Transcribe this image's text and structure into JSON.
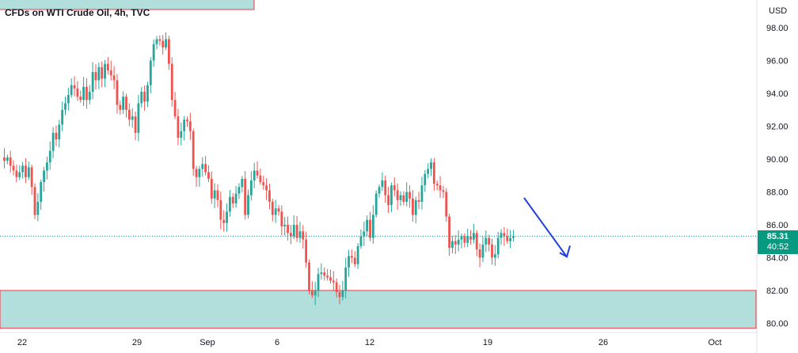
{
  "header": {
    "title": "CFDs on WTI Crude Oil, 4h, TVC"
  },
  "price_badge": {
    "price": "85.31",
    "countdown": "40:52"
  },
  "colors": {
    "up": "#26a69a",
    "down": "#ef5350",
    "zone_fill": "#b2dfdb",
    "zone_border": "#f23645",
    "arrow": "#1e40d8",
    "last_price_line": "#089981",
    "axis_text": "#131722"
  },
  "chart_data": {
    "type": "candlestick",
    "title": "CFDs on WTI Crude Oil, 4h, TVC",
    "currency_label": "USD",
    "ylim": [
      79.3,
      99.5
    ],
    "y_ticks": [
      80.0,
      82.0,
      84.0,
      86.0,
      88.0,
      90.0,
      92.0,
      94.0,
      96.0,
      98.0
    ],
    "x_tick_labels": [
      "22",
      "29",
      "Sep",
      "6",
      "12",
      "19",
      "26",
      "Oct"
    ],
    "last_price": 85.31,
    "support_zone": {
      "low": 79.7,
      "high": 82.0
    },
    "projection": {
      "from": "after last bar",
      "to": 82.8,
      "direction": "down"
    },
    "close": [
      89.9,
      90.1,
      89.6,
      89.3,
      88.9,
      89.2,
      89.6,
      88.9,
      89.5,
      88.3,
      86.6,
      87.4,
      88.6,
      89.3,
      89.8,
      90.5,
      91.6,
      91.2,
      92.1,
      93.0,
      93.4,
      93.9,
      94.5,
      94.3,
      93.8,
      93.6,
      94.4,
      93.6,
      94.1,
      95.3,
      94.8,
      95.6,
      94.9,
      95.8,
      95.4,
      95.1,
      94.8,
      93.3,
      93.0,
      93.8,
      93.0,
      92.4,
      92.6,
      91.6,
      93.4,
      94.1,
      93.5,
      94.5,
      96.0,
      97.0,
      97.3,
      97.2,
      96.8,
      97.3,
      95.8,
      93.6,
      92.6,
      91.3,
      91.7,
      92.4,
      92.3,
      91.7,
      89.4,
      88.9,
      89.4,
      89.7,
      89.2,
      88.8,
      87.6,
      88.1,
      87.5,
      86.3,
      86.1,
      86.8,
      87.7,
      87.3,
      87.9,
      88.3,
      88.8,
      86.6,
      87.8,
      88.7,
      89.3,
      89.0,
      88.6,
      88.4,
      88.1,
      87.4,
      86.6,
      87.0,
      86.8,
      85.9,
      86.0,
      85.5,
      85.3,
      86.0,
      85.2,
      85.6,
      85.1,
      83.7,
      82.0,
      81.7,
      82.0,
      83.0,
      83.1,
      82.9,
      82.8,
      82.6,
      82.5,
      81.9,
      81.6,
      82.0,
      83.4,
      84.1,
      84.0,
      83.6,
      84.7,
      85.3,
      85.6,
      86.3,
      85.2,
      86.6,
      87.9,
      88.3,
      88.7,
      87.8,
      87.2,
      88.4,
      88.1,
      87.5,
      87.8,
      87.4,
      88.0,
      87.6,
      86.6,
      87.5,
      87.4,
      88.4,
      89.1,
      89.4,
      89.8,
      88.5,
      88.4,
      88.1,
      88.0,
      86.5,
      84.6,
      85.0,
      84.8,
      85.1,
      85.3,
      84.9,
      85.3,
      85.1,
      85.5,
      84.5,
      84.0,
      84.8,
      85.2,
      84.8,
      84.0,
      84.2,
      85.2,
      85.5,
      85.3,
      85.0,
      85.2,
      85.31
    ]
  }
}
